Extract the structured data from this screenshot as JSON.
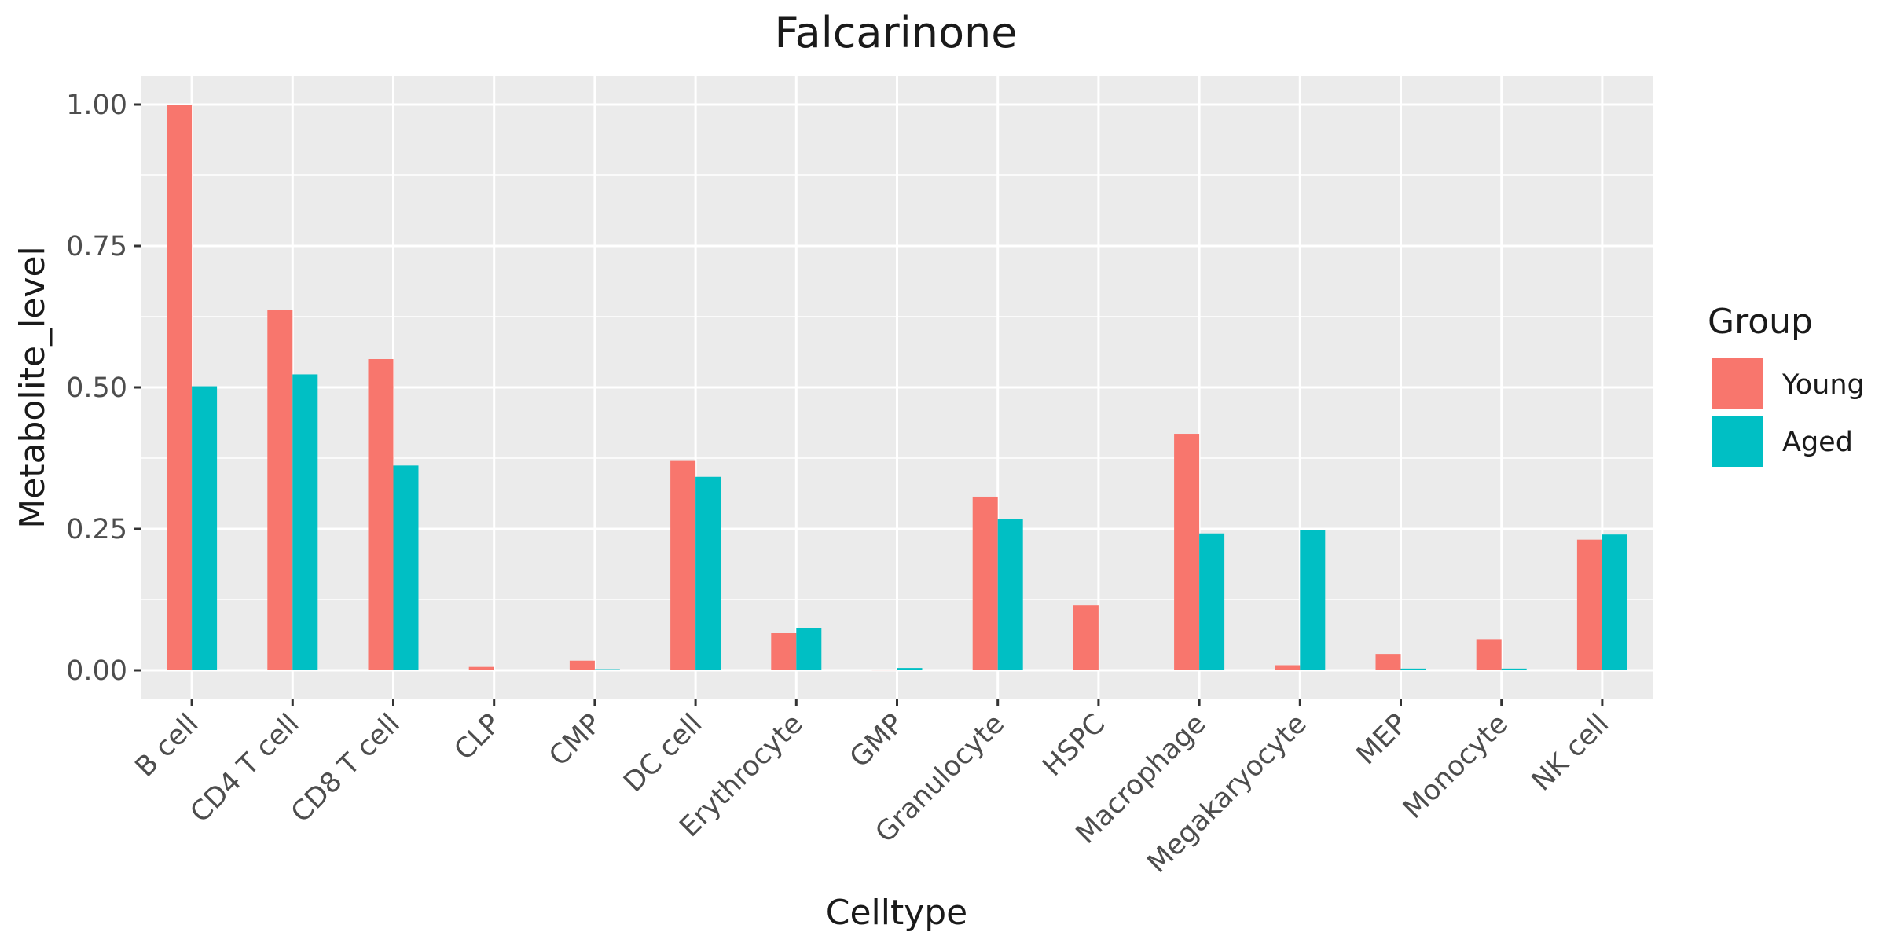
{
  "chart_data": {
    "type": "bar",
    "title": "Falcarinone",
    "xlabel": "Celltype",
    "ylabel": "Metabolite_level",
    "categories": [
      "B cell",
      "CD4 T cell",
      "CD8 T cell",
      "CLP",
      "CMP",
      "DC cell",
      "Erythrocyte",
      "GMP",
      "Granulocyte",
      "HSPC",
      "Macrophage",
      "Megakaryocyte",
      "MEP",
      "Monocyte",
      "NK cell"
    ],
    "series": [
      {
        "name": "Young",
        "color": "#F8766D",
        "values": [
          1.0,
          0.637,
          0.55,
          0.006,
          0.017,
          0.37,
          0.066,
          0.001,
          0.307,
          0.115,
          0.418,
          0.009,
          0.029,
          0.055,
          0.231
        ]
      },
      {
        "name": "Aged",
        "color": "#00BFC4",
        "values": [
          0.502,
          0.523,
          0.362,
          0.0,
          0.002,
          0.342,
          0.075,
          0.004,
          0.267,
          0.0,
          0.242,
          0.248,
          0.003,
          0.003,
          0.24
        ]
      }
    ],
    "ylim": [
      -0.05,
      1.05
    ],
    "yticks": [
      0.0,
      0.25,
      0.5,
      0.75,
      1.0
    ],
    "ytick_labels": [
      "0.00",
      "0.25",
      "0.50",
      "0.75",
      "1.00"
    ],
    "legend": {
      "title": "Group",
      "position": "right"
    },
    "grid": true,
    "panel_background": "#EBEBEB"
  }
}
